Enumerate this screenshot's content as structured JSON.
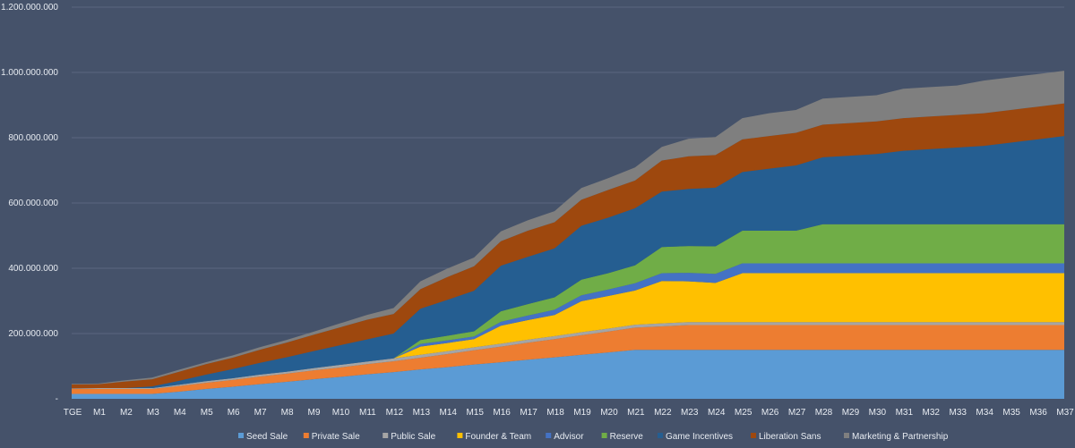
{
  "chart_data": {
    "type": "area",
    "stacked": true,
    "title": "",
    "xlabel": "",
    "ylabel": "",
    "ylim": [
      0,
      1200000000
    ],
    "y_ticks": [
      0,
      200000000,
      400000000,
      600000000,
      800000000,
      1000000000,
      1200000000
    ],
    "y_tick_labels": [
      "-",
      "200.000.000",
      "400.000.000",
      "600.000.000",
      "800.000.000",
      "1.000.000.000",
      "1.200.000.000"
    ],
    "grid": true,
    "legend_position": "bottom",
    "categories": [
      "TGE",
      "M1",
      "M2",
      "M3",
      "M4",
      "M5",
      "M6",
      "M7",
      "M8",
      "M9",
      "M10",
      "M11",
      "M12",
      "M13",
      "M14",
      "M15",
      "M16",
      "M17",
      "M18",
      "M19",
      "M20",
      "M21",
      "M22",
      "M23",
      "M24",
      "M25",
      "M26",
      "M27",
      "M28",
      "M29",
      "M30",
      "M31",
      "M32",
      "M33",
      "M34",
      "M35",
      "M36",
      "M37"
    ],
    "series": [
      {
        "name": "Seed Sale",
        "color": "#5b9bd5",
        "values": [
          15000000,
          15000000,
          15000000,
          15000000,
          22000000,
          30000000,
          37000000,
          45000000,
          52000000,
          60000000,
          67000000,
          75000000,
          82000000,
          90000000,
          97000000,
          105000000,
          112000000,
          120000000,
          127000000,
          135000000,
          142000000,
          150000000,
          150000000,
          150000000,
          150000000,
          150000000,
          150000000,
          150000000,
          150000000,
          150000000,
          150000000,
          150000000,
          150000000,
          150000000,
          150000000,
          150000000,
          150000000,
          150000000
        ]
      },
      {
        "name": "Private Sale",
        "color": "#ed7d31",
        "values": [
          15000000,
          15000000,
          15000000,
          15000000,
          17000000,
          19000000,
          21000000,
          23000000,
          25000000,
          27000000,
          29000000,
          31000000,
          33000000,
          36000000,
          40000000,
          44000000,
          48000000,
          52000000,
          56000000,
          60000000,
          64000000,
          68000000,
          72000000,
          76000000,
          76000000,
          76000000,
          76000000,
          76000000,
          76000000,
          76000000,
          76000000,
          76000000,
          76000000,
          76000000,
          76000000,
          76000000,
          76000000,
          76000000
        ]
      },
      {
        "name": "Public Sale",
        "color": "#a5a5a5",
        "values": [
          2000000,
          3000000,
          3000000,
          3000000,
          4000000,
          5000000,
          5000000,
          6000000,
          6000000,
          7000000,
          8000000,
          8000000,
          9000000,
          9000000,
          9000000,
          9000000,
          9000000,
          9000000,
          9000000,
          9000000,
          9000000,
          9000000,
          9000000,
          9000000,
          9000000,
          9000000,
          9000000,
          9000000,
          9000000,
          9000000,
          9000000,
          9000000,
          9000000,
          9000000,
          9000000,
          9000000,
          9000000,
          9000000
        ]
      },
      {
        "name": "Founder & Team",
        "color": "#ffc000",
        "values": [
          0,
          0,
          0,
          0,
          0,
          0,
          0,
          0,
          0,
          0,
          0,
          0,
          0,
          25000000,
          25000000,
          25000000,
          55000000,
          60000000,
          65000000,
          95000000,
          100000000,
          105000000,
          130000000,
          125000000,
          120000000,
          150000000,
          150000000,
          150000000,
          150000000,
          150000000,
          150000000,
          150000000,
          150000000,
          150000000,
          150000000,
          150000000,
          150000000,
          150000000
        ]
      },
      {
        "name": "Advisor",
        "color": "#4472c4",
        "values": [
          0,
          0,
          0,
          0,
          0,
          0,
          0,
          0,
          0,
          0,
          0,
          0,
          0,
          8000000,
          8000000,
          8000000,
          12000000,
          14000000,
          16000000,
          18000000,
          20000000,
          22000000,
          24000000,
          26000000,
          28000000,
          30000000,
          30000000,
          30000000,
          30000000,
          30000000,
          30000000,
          30000000,
          30000000,
          30000000,
          30000000,
          30000000,
          30000000,
          30000000
        ]
      },
      {
        "name": "Reserve",
        "color": "#70ad47",
        "values": [
          0,
          0,
          0,
          0,
          0,
          0,
          0,
          0,
          0,
          0,
          0,
          0,
          0,
          12000000,
          14000000,
          16000000,
          32000000,
          35000000,
          38000000,
          48000000,
          50000000,
          55000000,
          80000000,
          82000000,
          84000000,
          100000000,
          100000000,
          100000000,
          120000000,
          120000000,
          120000000,
          120000000,
          120000000,
          120000000,
          120000000,
          120000000,
          120000000,
          120000000
        ]
      },
      {
        "name": "Game Incentives",
        "color": "#255e91",
        "values": [
          0,
          0,
          0,
          5000000,
          12000000,
          20000000,
          28000000,
          36000000,
          44000000,
          52000000,
          60000000,
          68000000,
          76000000,
          96000000,
          110000000,
          124000000,
          140000000,
          145000000,
          150000000,
          165000000,
          170000000,
          175000000,
          170000000,
          175000000,
          180000000,
          180000000,
          190000000,
          200000000,
          205000000,
          210000000,
          215000000,
          225000000,
          230000000,
          235000000,
          240000000,
          250000000,
          260000000,
          270000000
        ]
      },
      {
        "name": "Liberation Sans",
        "color": "#9e480e",
        "values": [
          12000000,
          12000000,
          20000000,
          22000000,
          28000000,
          32000000,
          35000000,
          40000000,
          45000000,
          50000000,
          55000000,
          60000000,
          60000000,
          60000000,
          70000000,
          75000000,
          75000000,
          80000000,
          80000000,
          80000000,
          85000000,
          85000000,
          95000000,
          100000000,
          100000000,
          100000000,
          100000000,
          100000000,
          100000000,
          100000000,
          100000000,
          100000000,
          100000000,
          100000000,
          100000000,
          100000000,
          100000000,
          100000000
        ]
      },
      {
        "name": "Marketing & Partnership",
        "color": "#7f7f7f",
        "values": [
          2000000,
          2000000,
          4000000,
          5000000,
          6000000,
          6000000,
          7000000,
          8000000,
          8000000,
          9000000,
          12000000,
          15000000,
          18000000,
          24000000,
          26000000,
          27000000,
          30000000,
          32000000,
          34000000,
          36000000,
          36000000,
          40000000,
          42000000,
          54000000,
          55000000,
          65000000,
          70000000,
          70000000,
          80000000,
          80000000,
          80000000,
          90000000,
          90000000,
          90000000,
          100000000,
          100000000,
          100000000,
          100000000
        ]
      }
    ]
  }
}
